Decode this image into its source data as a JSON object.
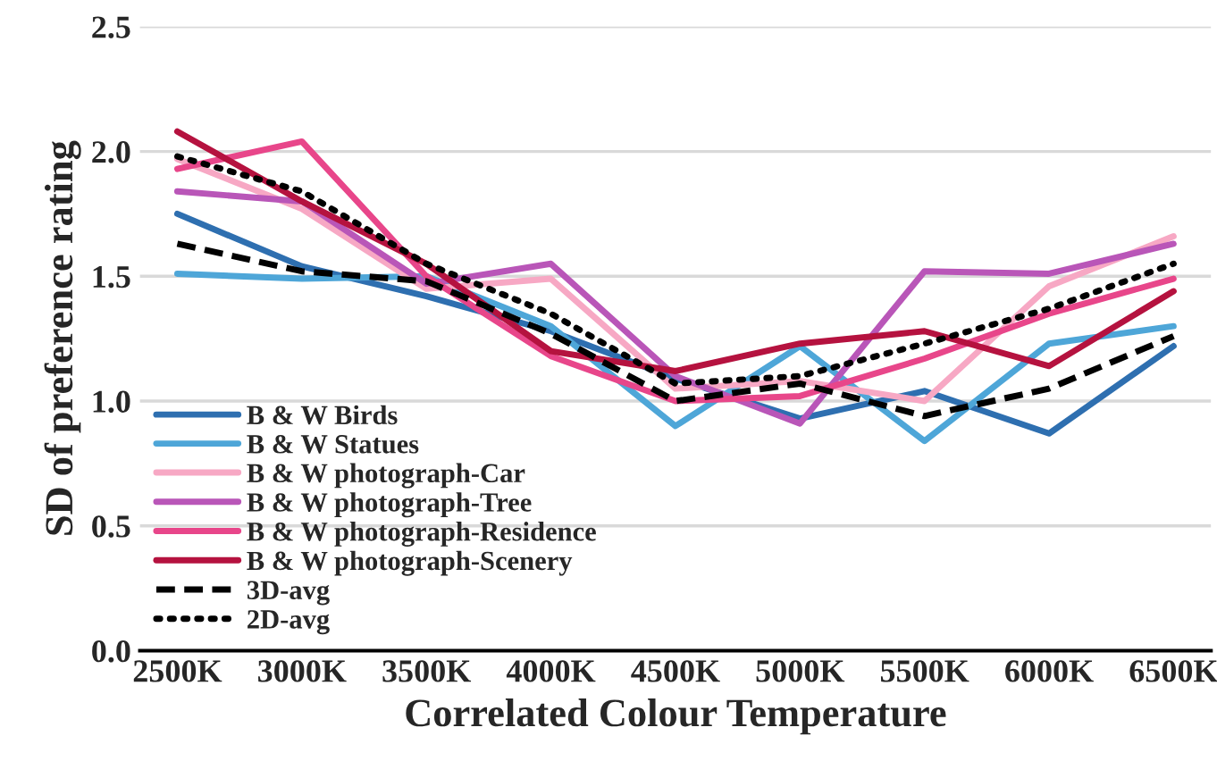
{
  "chart_data": {
    "type": "line",
    "xlabel": "Correlated Colour Temperature",
    "ylabel": "SD of preference rating",
    "categories": [
      "2500K",
      "3000K",
      "3500K",
      "4000K",
      "4500K",
      "5000K",
      "5500K",
      "6000K",
      "6500K"
    ],
    "ylim": [
      0,
      2.5
    ],
    "yticks": [
      {
        "value": 0,
        "label": "0.0"
      },
      {
        "value": 0.5,
        "label": "0.5"
      },
      {
        "value": 1,
        "label": "1.0"
      },
      {
        "value": 1.5,
        "label": "1.5"
      },
      {
        "value": 2,
        "label": "2.0"
      },
      {
        "value": 2.5,
        "label": "2.5"
      }
    ],
    "grid": "y",
    "legend": "bottom left",
    "marker": "none",
    "series": [
      {
        "name": "B & W Birds",
        "color": "#2e6fb0",
        "values": [
          1.75,
          1.54,
          1.42,
          1.28,
          1.09,
          0.93,
          1.04,
          0.87,
          1.22
        ]
      },
      {
        "name": "B & W Statues",
        "color": "#4ea6d8",
        "values": [
          1.51,
          1.49,
          1.5,
          1.3,
          0.9,
          1.22,
          0.84,
          1.23,
          1.3
        ]
      },
      {
        "name": "B & W photograph-Car",
        "color": "#f7a8c4",
        "values": [
          1.97,
          1.77,
          1.45,
          1.49,
          1.05,
          1.08,
          1.0,
          1.46,
          1.66
        ]
      },
      {
        "name": "B & W photograph-Tree",
        "color": "#b956b8",
        "values": [
          1.84,
          1.8,
          1.47,
          1.55,
          1.1,
          0.91,
          1.52,
          1.51,
          1.63
        ]
      },
      {
        "name": "B & W photograph-Residence",
        "color": "#e8468a",
        "values": [
          1.93,
          2.04,
          1.5,
          1.18,
          1.0,
          1.02,
          1.17,
          1.35,
          1.49
        ]
      },
      {
        "name": "B & W photograph-Scenery",
        "color": "#b5123f",
        "values": [
          2.08,
          1.8,
          1.55,
          1.2,
          1.12,
          1.23,
          1.28,
          1.14,
          1.44
        ]
      },
      {
        "name": "3D-avg",
        "color": "#000000",
        "line_style": "dashed",
        "values": [
          1.63,
          1.52,
          1.48,
          1.27,
          1.0,
          1.07,
          0.94,
          1.05,
          1.26
        ]
      },
      {
        "name": "2D-avg",
        "color": "#000000",
        "line_style": "dotted",
        "values": [
          1.98,
          1.84,
          1.55,
          1.35,
          1.07,
          1.1,
          1.23,
          1.37,
          1.55
        ]
      }
    ]
  }
}
